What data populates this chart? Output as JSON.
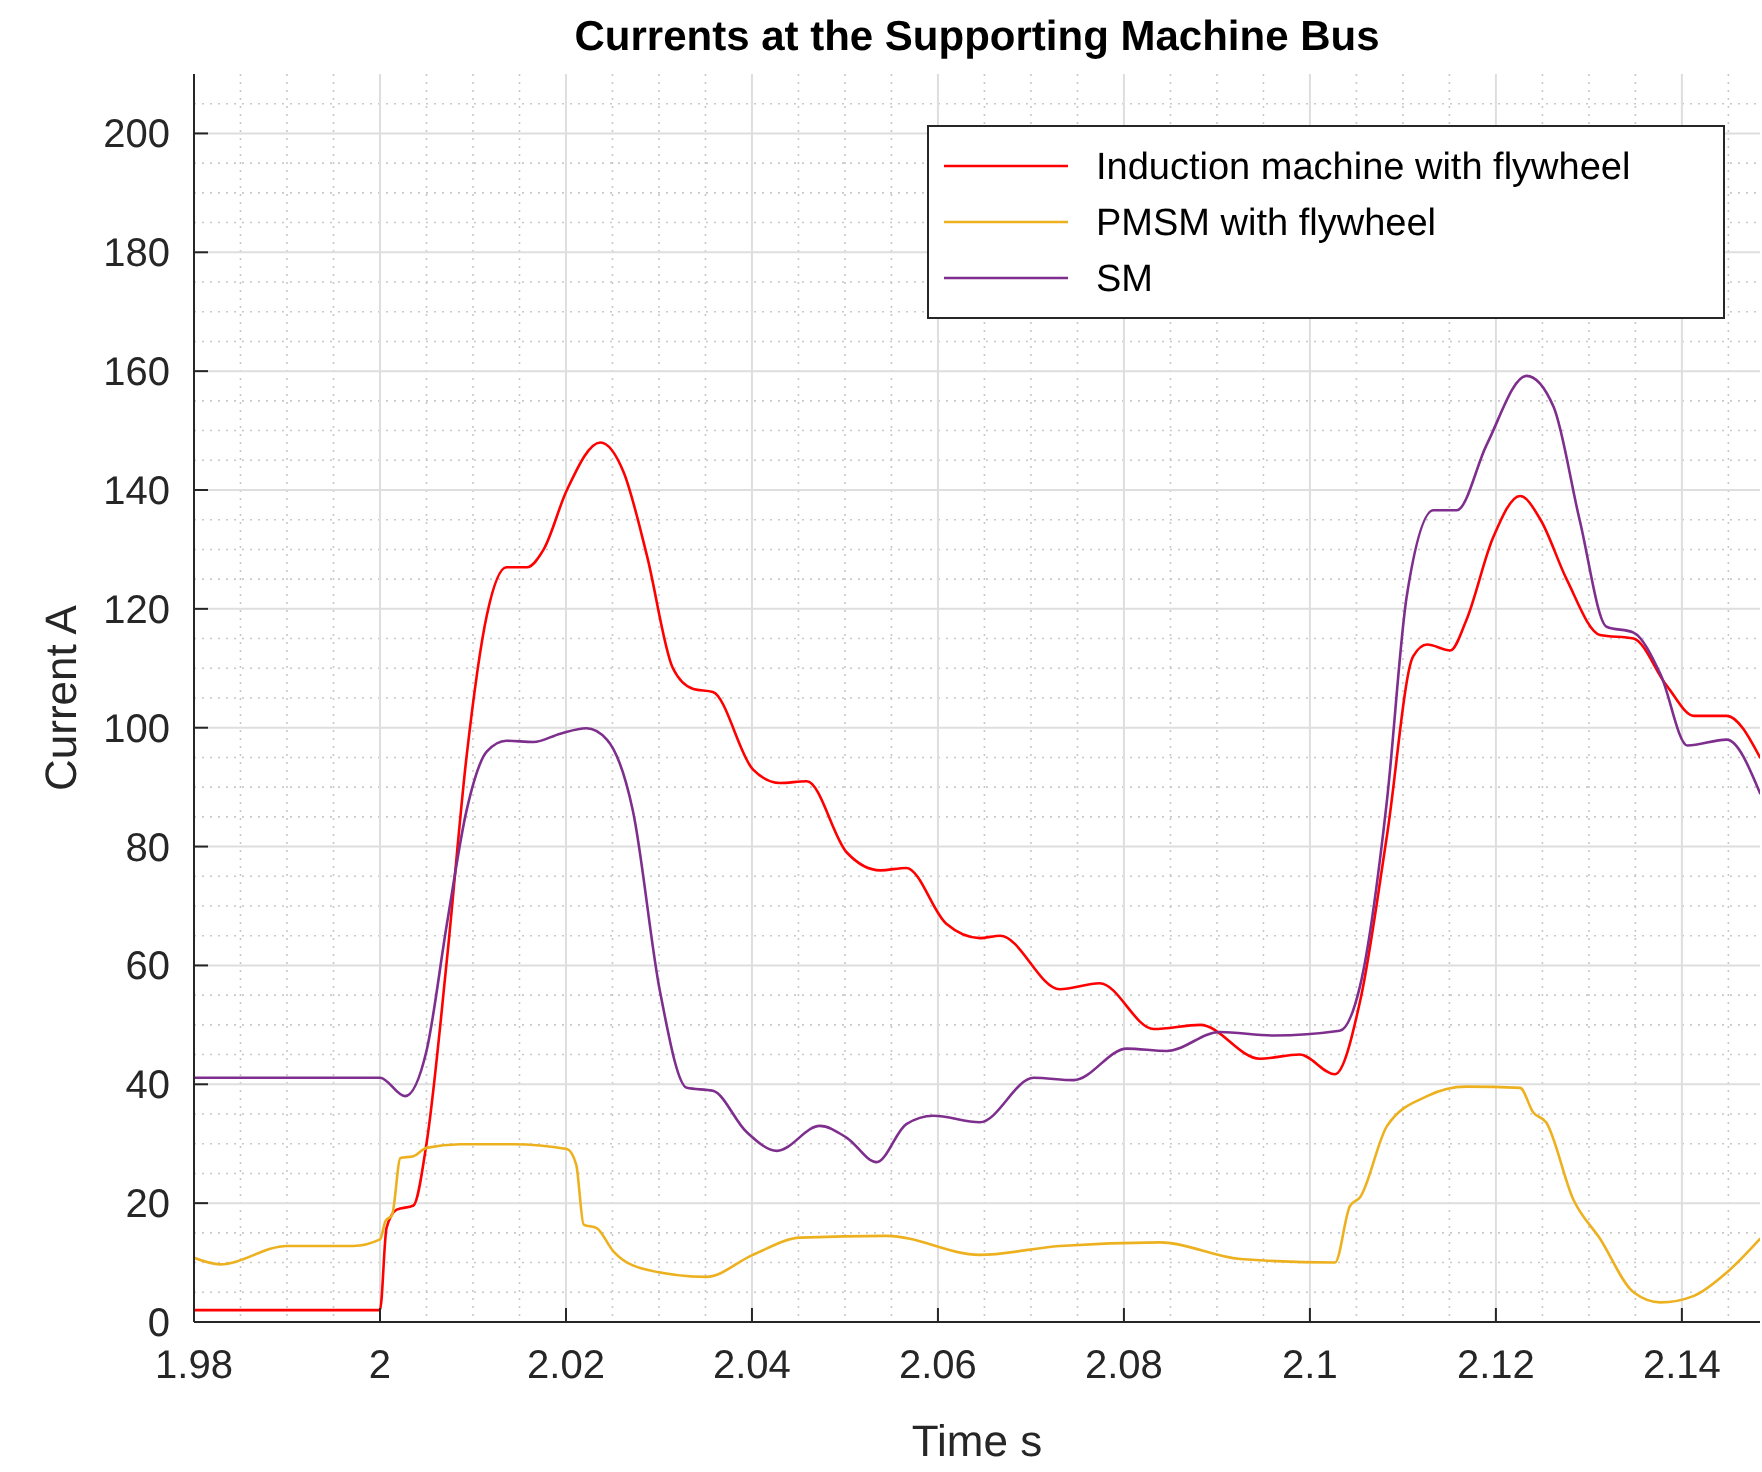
{
  "chart_data": {
    "type": "line",
    "title": "Currents at the Supporting Machine Bus",
    "xlabel": "Time s",
    "ylabel": "Current A",
    "xlim": [
      1.98,
      2.1484
    ],
    "xticks": [
      1.98,
      2,
      2.02,
      2.04,
      2.06,
      2.08,
      2.1,
      2.12,
      2.14
    ],
    "ylim": [
      0,
      210
    ],
    "yticks": [
      0,
      20,
      40,
      60,
      80,
      100,
      120,
      140,
      160,
      180,
      200
    ],
    "grid": true,
    "legend": "top right",
    "line_style": "solid",
    "series": [
      {
        "name": "Induction machine with flywheel",
        "color": "#ff0000",
        "x": [
          1.98,
          2,
          2.0007,
          2.0018,
          2.0036,
          2.005,
          2.0072,
          2.0093,
          2.0115,
          2.0136,
          2.0158,
          2.0176,
          2.0201,
          2.0237,
          2.0262,
          2.0287,
          2.0315,
          2.0337,
          2.0358,
          2.0401,
          2.043,
          2.0459,
          2.0502,
          2.0538,
          2.0566,
          2.0609,
          2.0645,
          2.0667,
          2.0731,
          2.0774,
          2.0832,
          2.0882,
          2.0946,
          2.0989,
          2.1027,
          2.1054,
          2.1083,
          2.1111,
          2.1126,
          2.1151,
          2.1168,
          2.1197,
          2.1226,
          2.1248,
          2.1276,
          2.1312,
          2.1348,
          2.1384,
          2.1413,
          2.1448,
          2.1484
        ],
        "values": [
          2,
          2,
          15.8,
          18.9,
          19.6,
          30,
          61,
          95,
          119,
          127,
          127,
          130,
          140,
          148,
          143,
          129,
          110,
          106.5,
          106,
          93,
          90.7,
          91,
          79,
          76,
          76.4,
          67,
          64.6,
          65,
          56,
          57,
          49.3,
          50,
          44.3,
          45,
          41.7,
          54,
          82,
          112,
          114,
          113,
          118,
          132,
          139,
          135,
          125,
          115.6,
          115,
          107,
          102,
          102,
          95
        ]
      },
      {
        "name": "PMSM with flywheel",
        "color": "#edb120",
        "x": [
          1.98,
          1.9828,
          1.99,
          1.9971,
          2,
          2.0006,
          2.0013,
          2.0022,
          2.0036,
          2.005,
          2.0086,
          2.0143,
          2.0201,
          2.0211,
          2.0219,
          2.0233,
          2.0251,
          2.0287,
          2.0351,
          2.0401,
          2.0452,
          2.0545,
          2.0645,
          2.0731,
          2.0839,
          2.0925,
          2.1027,
          2.1043,
          2.1054,
          2.1083,
          2.1126,
          2.1168,
          2.1226,
          2.124,
          2.1254,
          2.1283,
          2.1312,
          2.1348,
          2.1377,
          2.1413,
          2.1448,
          2.1484
        ],
        "values": [
          10.8,
          9.7,
          12.8,
          12.8,
          13.9,
          17,
          18,
          27.6,
          27.9,
          29.3,
          29.9,
          29.9,
          29.1,
          26.5,
          16.4,
          15.8,
          11.9,
          8.8,
          7.6,
          11.3,
          14.2,
          14.5,
          11.3,
          12.8,
          13.4,
          10.6,
          10,
          19.5,
          21,
          33,
          38,
          39.6,
          39.4,
          35.3,
          33.6,
          20.7,
          14,
          5,
          3.3,
          4.4,
          8.3,
          14
        ]
      },
      {
        "name": "SM",
        "color": "#7e2f8e",
        "x": [
          1.98,
          2,
          2.0027,
          2.005,
          2.0072,
          2.0093,
          2.0115,
          2.0136,
          2.0165,
          2.0194,
          2.0222,
          2.0244,
          2.0272,
          2.0301,
          2.033,
          2.0358,
          2.0394,
          2.0427,
          2.0473,
          2.0502,
          2.0534,
          2.0566,
          2.0595,
          2.0645,
          2.0703,
          2.0746,
          2.0803,
          2.0846,
          2.0903,
          2.0961,
          2.1032,
          2.1054,
          2.1083,
          2.1104,
          2.1133,
          2.1158,
          2.119,
          2.1233,
          2.1262,
          2.129,
          2.1319,
          2.1348,
          2.1377,
          2.1406,
          2.1448,
          2.1484
        ],
        "values": [
          41.1,
          41.1,
          38,
          45.6,
          67,
          86,
          96,
          97.8,
          97.6,
          99,
          99.9,
          98,
          86,
          55.7,
          39.4,
          38.9,
          32,
          28.8,
          33,
          31,
          26.9,
          33.3,
          34.7,
          33.6,
          41.1,
          40.7,
          46,
          45.6,
          48.8,
          48.2,
          49,
          56.6,
          88,
          122,
          136.6,
          136.6,
          147.6,
          159.2,
          154,
          135,
          117,
          116,
          109,
          97,
          98,
          89
        ]
      }
    ]
  }
}
